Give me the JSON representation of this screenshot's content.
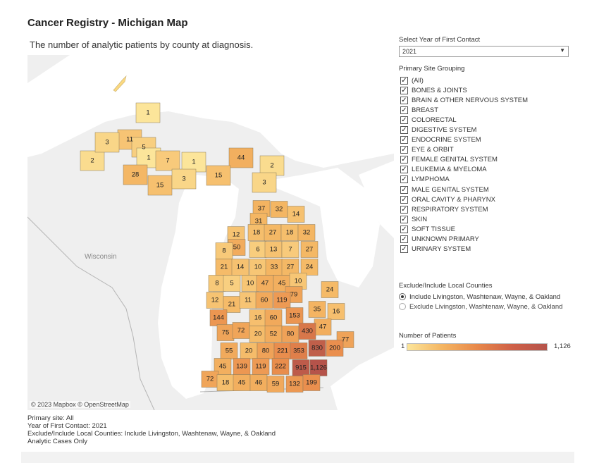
{
  "header": {
    "title": "Cancer Registry - Michigan Map",
    "subtitle": "The number of analytic patients by county at diagnosis."
  },
  "map": {
    "attribution": "© 2023 Mapbox © OpenStreetMap",
    "place_label": "Wisconsin",
    "colors": {
      "water": "#ffffff",
      "land": "#efefef",
      "border": "#aaaaaa",
      "low": "#fce59a",
      "mid": "#f4b562",
      "high": "#e8884a",
      "top": "#b5534a"
    },
    "counties": [
      {
        "label": "1",
        "value": 1
      },
      {
        "label": "11",
        "value": 11
      },
      {
        "label": "5",
        "value": 5
      },
      {
        "label": "1",
        "value": 1
      },
      {
        "label": "2",
        "value": 2
      },
      {
        "label": "3",
        "value": 3
      },
      {
        "label": "28",
        "value": 28
      },
      {
        "label": "7",
        "value": 7
      },
      {
        "label": "1",
        "value": 1
      },
      {
        "label": "44",
        "value": 44
      },
      {
        "label": "2",
        "value": 2
      },
      {
        "label": "15",
        "value": 15
      },
      {
        "label": "3",
        "value": 3
      },
      {
        "label": "15",
        "value": 15
      },
      {
        "label": "3",
        "value": 3
      },
      {
        "label": "37",
        "value": 37
      },
      {
        "label": "32",
        "value": 32
      },
      {
        "label": "14",
        "value": 14
      },
      {
        "label": "31",
        "value": 31
      },
      {
        "label": "12",
        "value": 12
      },
      {
        "label": "18",
        "value": 18
      },
      {
        "label": "27",
        "value": 27
      },
      {
        "label": "18",
        "value": 18
      },
      {
        "label": "32",
        "value": 32
      },
      {
        "label": "50",
        "value": 50
      },
      {
        "label": "8",
        "value": 8
      },
      {
        "label": "6",
        "value": 6
      },
      {
        "label": "13",
        "value": 13
      },
      {
        "label": "7",
        "value": 7
      },
      {
        "label": "27",
        "value": 27
      },
      {
        "label": "21",
        "value": 21
      },
      {
        "label": "14",
        "value": 14
      },
      {
        "label": "10",
        "value": 10
      },
      {
        "label": "33",
        "value": 33
      },
      {
        "label": "27",
        "value": 27
      },
      {
        "label": "24",
        "value": 24
      },
      {
        "label": "8",
        "value": 8
      },
      {
        "label": "5",
        "value": 5
      },
      {
        "label": "10",
        "value": 10
      },
      {
        "label": "47",
        "value": 47
      },
      {
        "label": "45",
        "value": 45
      },
      {
        "label": "10",
        "value": 10
      },
      {
        "label": "24",
        "value": 24
      },
      {
        "label": "79",
        "value": 79
      },
      {
        "label": "12",
        "value": 12
      },
      {
        "label": "21",
        "value": 21
      },
      {
        "label": "11",
        "value": 11
      },
      {
        "label": "60",
        "value": 60
      },
      {
        "label": "119",
        "value": 119
      },
      {
        "label": "35",
        "value": 35
      },
      {
        "label": "16",
        "value": 16
      },
      {
        "label": "144",
        "value": 144
      },
      {
        "label": "16",
        "value": 16
      },
      {
        "label": "60",
        "value": 60
      },
      {
        "label": "153",
        "value": 153
      },
      {
        "label": "47",
        "value": 47
      },
      {
        "label": "75",
        "value": 75
      },
      {
        "label": "72",
        "value": 72
      },
      {
        "label": "20",
        "value": 20
      },
      {
        "label": "52",
        "value": 52
      },
      {
        "label": "80",
        "value": 80
      },
      {
        "label": "430",
        "value": 430
      },
      {
        "label": "77",
        "value": 77
      },
      {
        "label": "55",
        "value": 55
      },
      {
        "label": "20",
        "value": 20
      },
      {
        "label": "80",
        "value": 80
      },
      {
        "label": "221",
        "value": 221
      },
      {
        "label": "353",
        "value": 353
      },
      {
        "label": "830",
        "value": 830
      },
      {
        "label": "200",
        "value": 200
      },
      {
        "label": "45",
        "value": 45
      },
      {
        "label": "139",
        "value": 139
      },
      {
        "label": "119",
        "value": 119
      },
      {
        "label": "222",
        "value": 222
      },
      {
        "label": "915",
        "value": 915
      },
      {
        "label": "1,126",
        "value": 1126
      },
      {
        "label": "72",
        "value": 72
      },
      {
        "label": "18",
        "value": 18
      },
      {
        "label": "45",
        "value": 45
      },
      {
        "label": "46",
        "value": 46
      },
      {
        "label": "59",
        "value": 59
      },
      {
        "label": "132",
        "value": 132
      },
      {
        "label": "199",
        "value": 199
      }
    ]
  },
  "filters": {
    "year_label": "Select Year of First Contact",
    "year_value": "2021",
    "site_label": "Primary Site Grouping",
    "sites": [
      "(All)",
      "BONES & JOINTS",
      "BRAIN & OTHER NERVOUS SYSTEM",
      "BREAST",
      "COLORECTAL",
      "DIGESTIVE SYSTEM",
      "ENDOCRINE SYSTEM",
      "EYE & ORBIT",
      "FEMALE GENITAL SYSTEM",
      "LEUKEMIA & MYELOMA",
      "LYMPHOMA",
      "MALE GENITAL SYSTEM",
      "ORAL CAVITY & PHARYNX",
      "RESPIRATORY SYSTEM",
      "SKIN",
      "SOFT TISSUE",
      "UNKNOWN PRIMARY",
      "URINARY SYSTEM"
    ],
    "check_glyph": "✓",
    "local_label": "Exclude/Include Local Counties",
    "local_options": [
      {
        "label": "Include Livingston, Washtenaw, Wayne, & Oakland",
        "selected": true
      },
      {
        "label": "Exclude Livingston, Washtenaw, Wayne, & Oakland",
        "selected": false
      }
    ]
  },
  "legend": {
    "title": "Number of Patients",
    "min_label": "1",
    "max_label": "1,126"
  },
  "footnotes": [
    "Primary site: All",
    "Year of First Contact: 2021",
    "Exclude/Include Local Counties: Include Livingston, Washtenaw, Wayne, & Oakland",
    "Analytic Cases Only"
  ]
}
